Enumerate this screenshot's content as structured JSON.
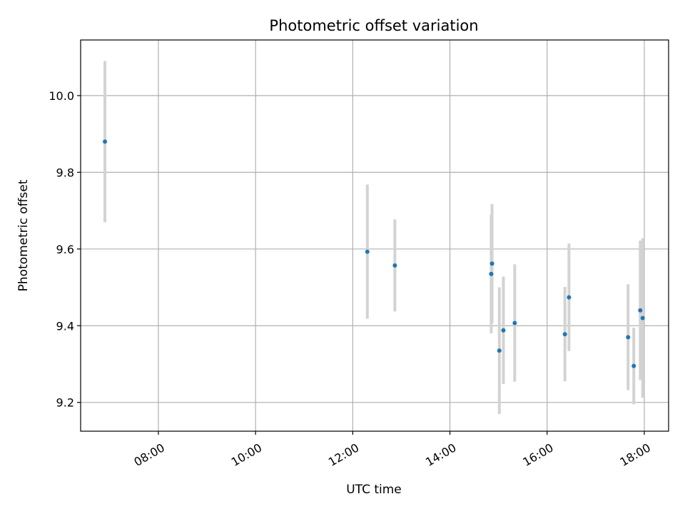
{
  "chart_data": {
    "type": "scatter",
    "title": "Photometric offset variation",
    "xlabel": "UTC time",
    "ylabel": "Photometric offset",
    "grid": true,
    "legend": "none",
    "xlim": [
      "06:24",
      "18:30"
    ],
    "ylim": [
      9.125,
      10.145
    ],
    "x_ticks": [
      "08:00",
      "10:00",
      "12:00",
      "14:00",
      "16:00",
      "18:00"
    ],
    "y_ticks": [
      "9.2",
      "9.4",
      "9.6",
      "9.8",
      "10.0"
    ],
    "points": [
      {
        "x": "06:54",
        "y": 9.88,
        "err": 0.21
      },
      {
        "x": "12:18",
        "y": 9.593,
        "err": 0.175
      },
      {
        "x": "12:52",
        "y": 9.557,
        "err": 0.12
      },
      {
        "x": "14:51",
        "y": 9.535,
        "err": 0.155
      },
      {
        "x": "14:52",
        "y": 9.562,
        "err": 0.155
      },
      {
        "x": "15:01",
        "y": 9.335,
        "err": 0.165
      },
      {
        "x": "15:06",
        "y": 9.388,
        "err": 0.14
      },
      {
        "x": "15:20",
        "y": 9.407,
        "err": 0.153
      },
      {
        "x": "16:22",
        "y": 9.378,
        "err": 0.123
      },
      {
        "x": "16:27",
        "y": 9.474,
        "err": 0.14
      },
      {
        "x": "17:40",
        "y": 9.37,
        "err": 0.138
      },
      {
        "x": "17:47",
        "y": 9.295,
        "err": 0.1
      },
      {
        "x": "17:55",
        "y": 9.44,
        "err": 0.182
      },
      {
        "x": "17:58",
        "y": 9.42,
        "err": 0.208
      }
    ],
    "colors": {
      "point": "#1f77b4",
      "errorbar": "#d3d3d3",
      "grid": "#b0b0b0",
      "axes": "#000000"
    }
  }
}
